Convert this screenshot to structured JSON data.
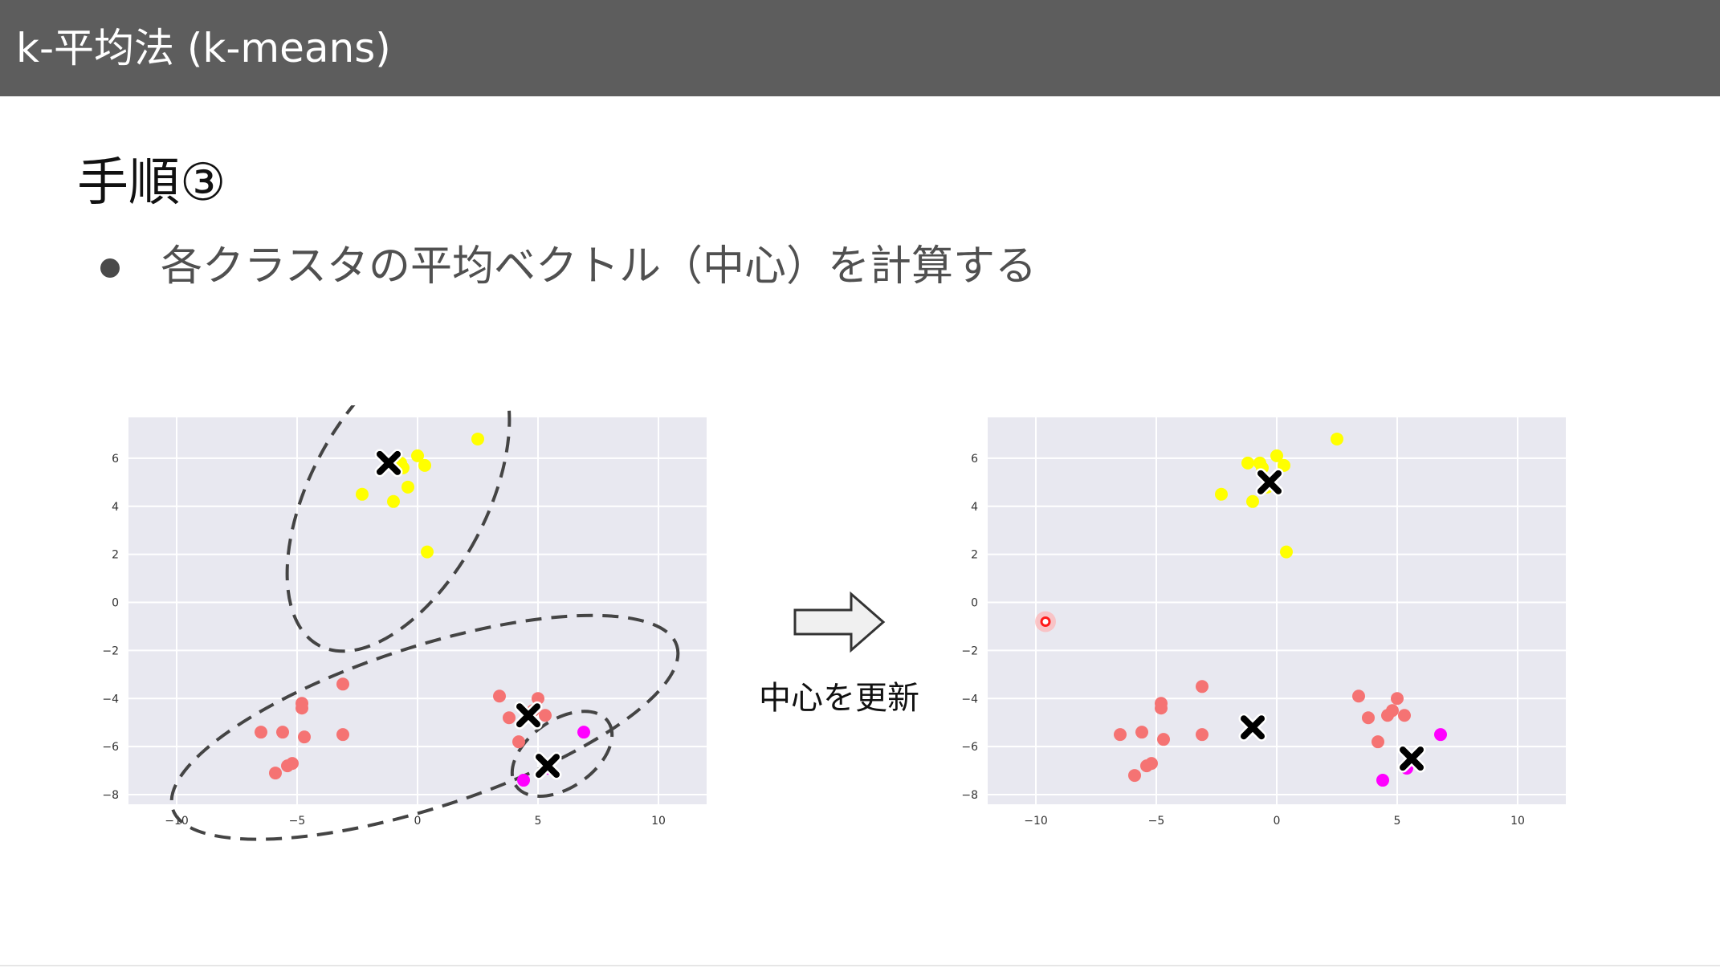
{
  "slide": {
    "title": "k-平均法 (k-means)",
    "heading": "手順③",
    "bullet": "各クラスタの平均ベクトル（中心）を計算する",
    "arrow_label": "中心を更新"
  },
  "colors": {
    "title_bar": "#5d5d5d",
    "plot_bg": "#e8e8f0",
    "yellow": "#ffff00",
    "salmon": "#f57373",
    "magenta": "#ff00ff",
    "center_marker": "#000000",
    "outlier": "#ff1a1a"
  },
  "chart_data": [
    {
      "type": "scatter",
      "title": "",
      "xlabel": "",
      "ylabel": "",
      "xlim": [
        -12,
        12
      ],
      "ylim": [
        -8.4,
        7.7
      ],
      "xticks": [
        -10,
        -5,
        0,
        5,
        10
      ],
      "yticks": [
        6,
        4,
        2,
        0,
        -2,
        -4,
        -6,
        -8
      ],
      "grid": true,
      "series": [
        {
          "color": "yellow",
          "points": [
            [
              2.5,
              6.8
            ],
            [
              0.0,
              6.1
            ],
            [
              -1.1,
              5.8
            ],
            [
              -0.7,
              5.8
            ],
            [
              -0.6,
              5.6
            ],
            [
              0.3,
              5.7
            ],
            [
              -0.4,
              4.8
            ],
            [
              -2.3,
              4.5
            ],
            [
              -1.0,
              4.2
            ],
            [
              0.4,
              2.1
            ]
          ]
        },
        {
          "color": "salmon",
          "points": [
            [
              -3.1,
              -3.4
            ],
            [
              -4.8,
              -4.2
            ],
            [
              -4.8,
              -4.4
            ],
            [
              -6.5,
              -5.4
            ],
            [
              -5.6,
              -5.4
            ],
            [
              -4.7,
              -5.6
            ],
            [
              -3.1,
              -5.5
            ],
            [
              -5.2,
              -6.7
            ],
            [
              -5.4,
              -6.8
            ],
            [
              -5.9,
              -7.1
            ],
            [
              3.4,
              -3.9
            ],
            [
              5.0,
              -4.0
            ],
            [
              4.8,
              -4.5
            ],
            [
              3.8,
              -4.8
            ],
            [
              4.6,
              -4.7
            ],
            [
              5.3,
              -4.7
            ],
            [
              4.2,
              -5.8
            ]
          ]
        },
        {
          "color": "magenta",
          "points": [
            [
              6.9,
              -5.4
            ],
            [
              4.4,
              -7.4
            ],
            [
              5.4,
              -6.9
            ]
          ]
        }
      ],
      "centers": [
        {
          "color": "yellow",
          "point": [
            -1.2,
            5.8
          ]
        },
        {
          "color": "salmon",
          "point": [
            4.6,
            -4.7
          ]
        },
        {
          "color": "magenta",
          "point": [
            5.4,
            -6.8
          ]
        }
      ]
    },
    {
      "type": "scatter",
      "title": "",
      "xlabel": "",
      "ylabel": "",
      "xlim": [
        -12,
        12
      ],
      "ylim": [
        -8.4,
        7.7
      ],
      "xticks": [
        -10,
        -5,
        0,
        5,
        10
      ],
      "yticks": [
        6,
        4,
        2,
        0,
        -2,
        -4,
        -6,
        -8
      ],
      "grid": true,
      "series": [
        {
          "color": "yellow",
          "points": [
            [
              2.5,
              6.8
            ],
            [
              0.0,
              6.1
            ],
            [
              -1.2,
              5.8
            ],
            [
              -0.7,
              5.8
            ],
            [
              -0.6,
              5.6
            ],
            [
              0.3,
              5.7
            ],
            [
              -0.4,
              4.8
            ],
            [
              -2.3,
              4.5
            ],
            [
              -1.0,
              4.2
            ],
            [
              0.4,
              2.1
            ]
          ]
        },
        {
          "color": "salmon",
          "points": [
            [
              -3.1,
              -3.5
            ],
            [
              -4.8,
              -4.2
            ],
            [
              -4.8,
              -4.4
            ],
            [
              -6.5,
              -5.5
            ],
            [
              -5.6,
              -5.4
            ],
            [
              -4.7,
              -5.7
            ],
            [
              -3.1,
              -5.5
            ],
            [
              -5.2,
              -6.7
            ],
            [
              -5.4,
              -6.8
            ],
            [
              -5.9,
              -7.2
            ],
            [
              3.4,
              -3.9
            ],
            [
              5.0,
              -4.0
            ],
            [
              4.8,
              -4.5
            ],
            [
              3.8,
              -4.8
            ],
            [
              4.6,
              -4.7
            ],
            [
              5.3,
              -4.7
            ],
            [
              4.2,
              -5.8
            ]
          ]
        },
        {
          "color": "magenta",
          "points": [
            [
              6.8,
              -5.5
            ],
            [
              4.4,
              -7.4
            ],
            [
              5.4,
              -6.9
            ]
          ]
        }
      ],
      "centers": [
        {
          "color": "yellow",
          "point": [
            -0.3,
            5.0
          ]
        },
        {
          "color": "salmon",
          "point": [
            -1.0,
            -5.2
          ]
        },
        {
          "color": "magenta",
          "point": [
            5.6,
            -6.5
          ]
        }
      ],
      "outliers": [
        [
          -9.6,
          -0.8
        ]
      ]
    }
  ]
}
